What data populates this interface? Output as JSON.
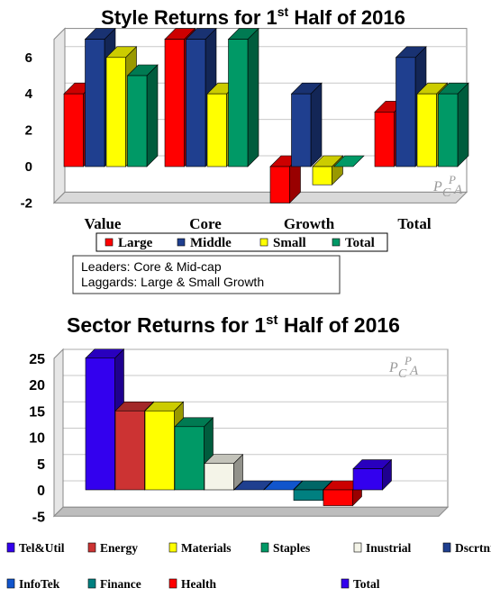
{
  "chart_data": [
    {
      "type": "bar",
      "title_main": "Style Returns for 1",
      "title_sup": "st",
      "title_rest": " Half of 2016",
      "categories": [
        "Value",
        "Core",
        "Growth",
        "Total"
      ],
      "series": [
        {
          "name": "Large",
          "color": "#ff0000",
          "values": [
            4,
            7,
            -2,
            3
          ]
        },
        {
          "name": "Middle",
          "color": "#1f3f8f",
          "values": [
            7,
            7,
            4,
            6
          ]
        },
        {
          "name": "Small",
          "color": "#ffff00",
          "values": [
            6,
            4,
            -1,
            4
          ]
        },
        {
          "name": "Total",
          "color": "#009966",
          "values": [
            5,
            7,
            0,
            4
          ]
        }
      ],
      "yticks": [
        "6",
        "4",
        "2",
        "0",
        "-2"
      ],
      "ylim": [
        -2,
        7
      ],
      "legend_position": "bottom",
      "note_lines": [
        "Leaders: Core & Mid-cap",
        "Laggards: Large & Small Growth"
      ],
      "watermark": "PCPA"
    },
    {
      "type": "bar",
      "title_main": "Sector Returns for 1",
      "title_sup": "st",
      "title_rest": " Half of 2016",
      "categories": [
        "Tel&Util",
        "Energy",
        "Materials",
        "Staples",
        "Inustrial",
        "Dscrtnry",
        "InfoTek",
        "Finance",
        "Health",
        "Total"
      ],
      "values": [
        25,
        15,
        15,
        12,
        5,
        0,
        0,
        -2,
        -3,
        4
      ],
      "colors": [
        "#3300ee",
        "#cc3333",
        "#ffff00",
        "#009966",
        "#f4f4e8",
        "#1f3f8f",
        "#1155cc",
        "#008080",
        "#ff0000",
        "#3300ee"
      ],
      "yticks": [
        "25",
        "20",
        "15",
        "10",
        "5",
        "0",
        "-5"
      ],
      "ylim": [
        -5,
        25
      ],
      "legend_position": "bottom",
      "watermark": "PCPA"
    }
  ]
}
